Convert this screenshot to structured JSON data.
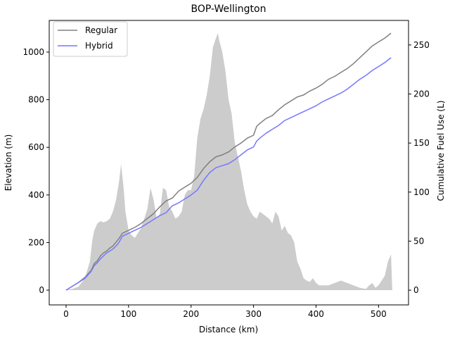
{
  "chart_data": {
    "type": "line",
    "title": "BOP-Wellington",
    "xlabel": "Distance (km)",
    "ylabel_left": "Elevation (m)",
    "ylabel_right": "Cumulative Fuel Use (L)",
    "xlim": [
      -27,
      548
    ],
    "ylim_left": [
      -62,
      1133
    ],
    "ylim_right": [
      -15,
      275
    ],
    "x_ticks": [
      0,
      100,
      200,
      300,
      400,
      500
    ],
    "y_left_ticks": [
      0,
      200,
      400,
      600,
      800,
      1000
    ],
    "y_right_ticks": [
      0,
      50,
      100,
      150,
      200,
      250
    ],
    "legend": {
      "position": "top-left"
    },
    "grid": false,
    "elevation_profile": {
      "color": "#cccccc",
      "x": [
        0,
        10,
        20,
        30,
        38,
        42,
        45,
        50,
        55,
        60,
        65,
        70,
        75,
        80,
        85,
        88,
        90,
        92,
        95,
        100,
        105,
        110,
        115,
        120,
        125,
        130,
        135,
        140,
        145,
        150,
        155,
        160,
        165,
        170,
        175,
        180,
        185,
        190,
        195,
        200,
        205,
        210,
        215,
        220,
        225,
        230,
        235,
        240,
        243,
        245,
        250,
        255,
        260,
        265,
        270,
        275,
        280,
        285,
        290,
        295,
        300,
        305,
        310,
        315,
        320,
        325,
        330,
        335,
        340,
        345,
        350,
        355,
        360,
        365,
        370,
        375,
        380,
        385,
        390,
        395,
        400,
        405,
        410,
        420,
        430,
        440,
        450,
        460,
        470,
        480,
        485,
        490,
        495,
        500,
        510,
        515,
        520,
        522
      ],
      "y": [
        0,
        5,
        15,
        50,
        120,
        210,
        250,
        280,
        290,
        285,
        290,
        300,
        330,
        380,
        460,
        530,
        480,
        430,
        330,
        250,
        230,
        220,
        240,
        260,
        300,
        340,
        430,
        380,
        300,
        320,
        430,
        420,
        350,
        330,
        300,
        310,
        330,
        400,
        420,
        420,
        480,
        640,
        720,
        760,
        820,
        900,
        1020,
        1060,
        1080,
        1050,
        1000,
        920,
        800,
        740,
        620,
        560,
        500,
        420,
        360,
        330,
        310,
        300,
        330,
        320,
        310,
        300,
        280,
        330,
        310,
        250,
        270,
        240,
        230,
        200,
        120,
        90,
        50,
        40,
        35,
        50,
        30,
        20,
        20,
        20,
        30,
        40,
        30,
        20,
        10,
        5,
        20,
        30,
        10,
        20,
        60,
        120,
        150,
        0
      ]
    },
    "series": [
      {
        "name": "Regular",
        "color": "#808080",
        "x": [
          0,
          10,
          20,
          30,
          40,
          45,
          50,
          55,
          60,
          65,
          70,
          75,
          80,
          85,
          90,
          100,
          110,
          120,
          130,
          140,
          150,
          160,
          170,
          180,
          190,
          200,
          210,
          220,
          230,
          240,
          250,
          260,
          270,
          280,
          290,
          300,
          305,
          310,
          320,
          330,
          340,
          350,
          360,
          370,
          380,
          390,
          400,
          410,
          420,
          430,
          440,
          450,
          460,
          470,
          480,
          490,
          500,
          510,
          520
        ],
        "y": [
          0,
          4,
          8,
          13,
          20,
          27,
          30,
          35,
          38,
          40,
          43,
          45,
          49,
          53,
          58,
          61,
          64,
          68,
          73,
          78,
          85,
          91,
          94,
          101,
          105,
          109,
          115,
          124,
          131,
          136,
          138,
          141,
          146,
          150,
          155,
          158,
          167,
          170,
          175,
          178,
          184,
          189,
          193,
          197,
          199,
          203,
          206,
          210,
          215,
          218,
          222,
          226,
          231,
          237,
          243,
          249,
          253,
          257,
          262
        ]
      },
      {
        "name": "Hybrid",
        "color": "#7777ff",
        "x": [
          0,
          10,
          20,
          30,
          40,
          45,
          50,
          55,
          60,
          65,
          70,
          75,
          80,
          85,
          90,
          100,
          110,
          120,
          130,
          140,
          150,
          160,
          170,
          180,
          190,
          200,
          210,
          220,
          230,
          240,
          250,
          260,
          270,
          280,
          290,
          300,
          305,
          310,
          320,
          330,
          340,
          350,
          360,
          370,
          380,
          390,
          400,
          410,
          420,
          430,
          440,
          450,
          460,
          470,
          480,
          490,
          500,
          510,
          520
        ],
        "y": [
          0,
          4,
          8,
          12,
          19,
          25,
          28,
          32,
          35,
          38,
          40,
          42,
          45,
          49,
          55,
          58,
          61,
          64,
          68,
          72,
          76,
          79,
          86,
          89,
          93,
          97,
          102,
          112,
          120,
          125,
          127,
          129,
          133,
          138,
          143,
          146,
          152,
          155,
          160,
          164,
          168,
          173,
          176,
          179,
          182,
          185,
          188,
          192,
          195,
          198,
          201,
          205,
          210,
          215,
          219,
          224,
          228,
          232,
          237
        ]
      }
    ]
  }
}
